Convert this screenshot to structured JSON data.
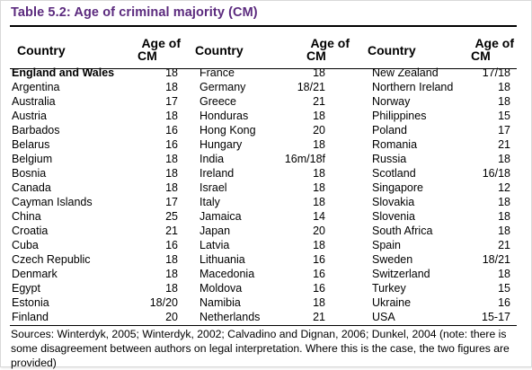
{
  "title": "Table 5.2: Age of criminal majority (CM)",
  "headers": {
    "country": "Country",
    "age_line1": "Age of",
    "age_line2": "CM"
  },
  "columns": [
    [
      {
        "country": "England and Wales",
        "age": "18",
        "bold": true
      },
      {
        "country": "Argentina",
        "age": "18"
      },
      {
        "country": "Australia",
        "age": "17"
      },
      {
        "country": "Austria",
        "age": "18"
      },
      {
        "country": "Barbados",
        "age": "16"
      },
      {
        "country": "Belarus",
        "age": "16"
      },
      {
        "country": "Belgium",
        "age": "18"
      },
      {
        "country": "Bosnia",
        "age": "18"
      },
      {
        "country": "Canada",
        "age": "18"
      },
      {
        "country": "Cayman Islands",
        "age": "17"
      },
      {
        "country": "China",
        "age": "25"
      },
      {
        "country": "Croatia",
        "age": "21"
      },
      {
        "country": "Cuba",
        "age": "16"
      },
      {
        "country": "Czech Republic",
        "age": "18"
      },
      {
        "country": "Denmark",
        "age": "18"
      },
      {
        "country": "Egypt",
        "age": "18"
      },
      {
        "country": "Estonia",
        "age": "18/20"
      },
      {
        "country": "Finland",
        "age": "20"
      }
    ],
    [
      {
        "country": "France",
        "age": "18"
      },
      {
        "country": "Germany",
        "age": "18/21"
      },
      {
        "country": "Greece",
        "age": "21"
      },
      {
        "country": "Honduras",
        "age": "18"
      },
      {
        "country": "Hong Kong",
        "age": "20"
      },
      {
        "country": "Hungary",
        "age": "18"
      },
      {
        "country": "India",
        "age": "16m/18f"
      },
      {
        "country": "Ireland",
        "age": "18"
      },
      {
        "country": "Israel",
        "age": "18"
      },
      {
        "country": "Italy",
        "age": "18"
      },
      {
        "country": "Jamaica",
        "age": "14"
      },
      {
        "country": "Japan",
        "age": "20"
      },
      {
        "country": "Latvia",
        "age": "18"
      },
      {
        "country": "Lithuania",
        "age": "16"
      },
      {
        "country": "Macedonia",
        "age": "16"
      },
      {
        "country": "Moldova",
        "age": "16"
      },
      {
        "country": "Namibia",
        "age": "18"
      },
      {
        "country": "Netherlands",
        "age": "21"
      }
    ],
    [
      {
        "country": "New Zealand",
        "age": "17/18"
      },
      {
        "country": "Northern Ireland",
        "age": "18"
      },
      {
        "country": "Norway",
        "age": "18"
      },
      {
        "country": "Philippines",
        "age": "15"
      },
      {
        "country": "Poland",
        "age": "17"
      },
      {
        "country": "Romania",
        "age": "21"
      },
      {
        "country": "Russia",
        "age": "18"
      },
      {
        "country": "Scotland",
        "age": "16/18"
      },
      {
        "country": "Singapore",
        "age": "12"
      },
      {
        "country": "Slovakia",
        "age": "18"
      },
      {
        "country": "Slovenia",
        "age": "18"
      },
      {
        "country": "South Africa",
        "age": "18"
      },
      {
        "country": "Spain",
        "age": "21"
      },
      {
        "country": "Sweden",
        "age": "18/21"
      },
      {
        "country": "Switzerland",
        "age": "18"
      },
      {
        "country": "Turkey",
        "age": "15"
      },
      {
        "country": "Ukraine",
        "age": "16"
      },
      {
        "country": "USA",
        "age": "15-17"
      }
    ]
  ],
  "sources": "Sources: Winterdyk, 2005; Winterdyk, 2002; Calvadino and Dignan, 2006; Dunkel, 2004 (note: there is some disagreement between authors on legal interpretation. Where this is the case, the two figures are provided)"
}
